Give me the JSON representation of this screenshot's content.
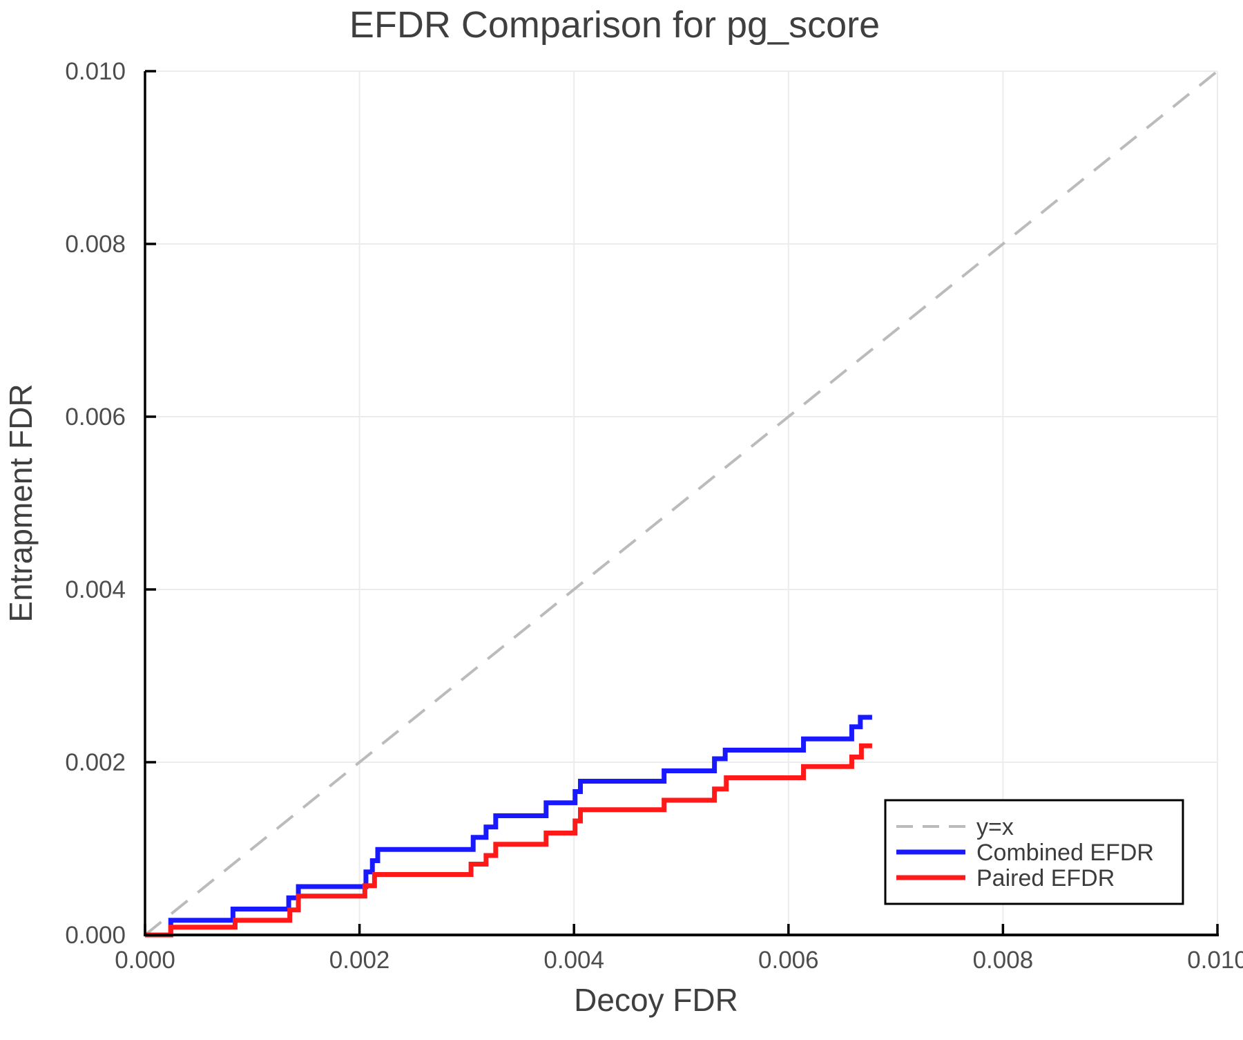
{
  "chart_data": {
    "type": "line",
    "title": "EFDR Comparison for pg_score",
    "xlabel": "Decoy FDR",
    "ylabel": "Entrapment FDR",
    "xlim": [
      0.0,
      0.01
    ],
    "ylim": [
      0.0,
      0.01
    ],
    "grid": true,
    "xticks": {
      "values": [
        0.0,
        0.002,
        0.004,
        0.006,
        0.008,
        0.01
      ],
      "labels": [
        "0.000",
        "0.002",
        "0.004",
        "0.006",
        "0.008",
        "0.010"
      ]
    },
    "yticks": {
      "values": [
        0.0,
        0.002,
        0.004,
        0.006,
        0.008,
        0.01
      ],
      "labels": [
        "0.000",
        "0.002",
        "0.004",
        "0.006",
        "0.008",
        "0.010"
      ]
    },
    "colors": {
      "spine": "#000000",
      "gridline": "#ececec",
      "diagonal": "#bbbbbb",
      "combined": "#1919ff",
      "paired": "#ff1919",
      "title_text": "#3f3f3f",
      "tick_text": "#4d4d4d"
    },
    "legend": {
      "position": "lower right",
      "entries": [
        {
          "label": "y=x",
          "series": "y-equals-x"
        },
        {
          "label": "Combined EFDR",
          "series": "combined-efdr"
        },
        {
          "label": "Paired EFDR",
          "series": "paired-efdr"
        }
      ]
    },
    "series": [
      {
        "name": "y=x",
        "slug": "y-equals-x",
        "type": "line",
        "style": "dashed",
        "color": "#bbbbbb",
        "points": [
          [
            0.0,
            0.0
          ],
          [
            0.01,
            0.01
          ]
        ]
      },
      {
        "name": "Combined EFDR",
        "slug": "combined-efdr",
        "type": "step-post",
        "style": "solid",
        "color": "#1919ff",
        "x_end": 0.00678,
        "points": [
          [
            0.0,
            0.0
          ],
          [
            0.00024,
            0.00017
          ],
          [
            0.00082,
            0.0003
          ],
          [
            0.00134,
            0.00043
          ],
          [
            0.00143,
            0.00056
          ],
          [
            0.00206,
            0.00073
          ],
          [
            0.00212,
            0.00086
          ],
          [
            0.00217,
            0.00099
          ],
          [
            0.00306,
            0.00113
          ],
          [
            0.00318,
            0.00125
          ],
          [
            0.00327,
            0.00138
          ],
          [
            0.00374,
            0.00153
          ],
          [
            0.00401,
            0.00166
          ],
          [
            0.00406,
            0.00178
          ],
          [
            0.00484,
            0.0019
          ],
          [
            0.00531,
            0.00204
          ],
          [
            0.00541,
            0.00214
          ],
          [
            0.00614,
            0.00227
          ],
          [
            0.00659,
            0.00241
          ],
          [
            0.00667,
            0.00252
          ]
        ]
      },
      {
        "name": "Paired EFDR",
        "slug": "paired-efdr",
        "type": "step-post",
        "style": "solid",
        "color": "#ff1919",
        "x_end": 0.00678,
        "points": [
          [
            0.0,
            0.0
          ],
          [
            0.00024,
            9e-05
          ],
          [
            0.00084,
            0.00017
          ],
          [
            0.00135,
            0.00029
          ],
          [
            0.00143,
            0.00045
          ],
          [
            0.00205,
            0.00057
          ],
          [
            0.00214,
            0.0007
          ],
          [
            0.00304,
            0.00082
          ],
          [
            0.00318,
            0.00092
          ],
          [
            0.00327,
            0.00105
          ],
          [
            0.00374,
            0.00118
          ],
          [
            0.00401,
            0.00132
          ],
          [
            0.00406,
            0.00145
          ],
          [
            0.00484,
            0.00156
          ],
          [
            0.00531,
            0.00169
          ],
          [
            0.00542,
            0.00182
          ],
          [
            0.00614,
            0.00195
          ],
          [
            0.00659,
            0.00206
          ],
          [
            0.00668,
            0.00219
          ]
        ]
      }
    ]
  }
}
